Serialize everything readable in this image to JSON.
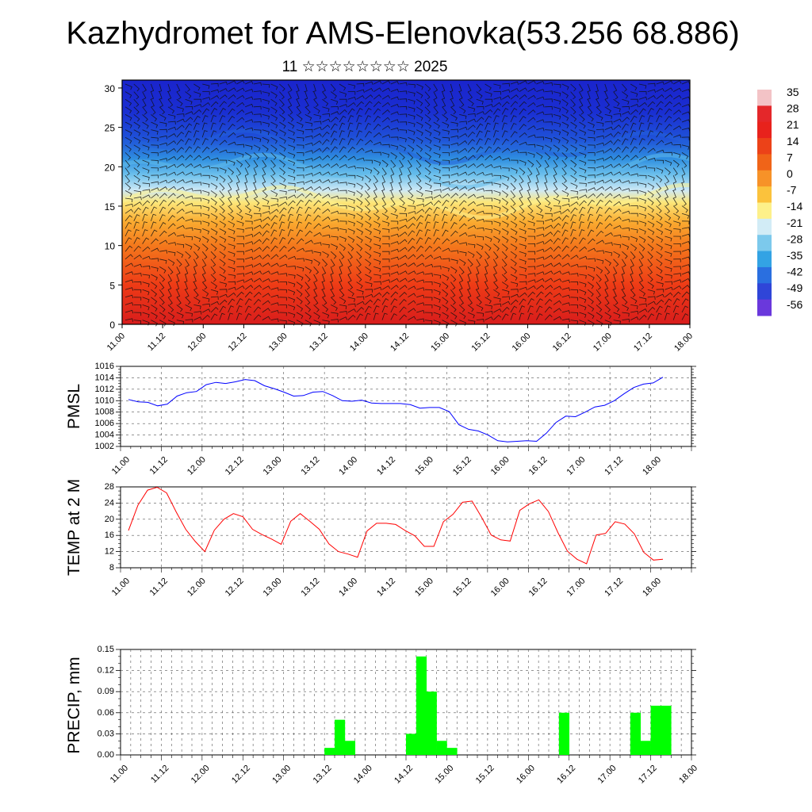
{
  "header": {
    "title": "Kazhydromet for AMS-Elenovka(53.256 68.886)",
    "subtitle": "11 ☆☆☆☆☆☆☆☆ 2025"
  },
  "time_labels": [
    "11.00",
    "11.12",
    "12.00",
    "12.12",
    "13.00",
    "13.12",
    "14.00",
    "14.12",
    "15.00",
    "15.12",
    "16.00",
    "16.12",
    "17.00",
    "17.12",
    "18.00"
  ],
  "chart_data": [
    {
      "type": "heatmap",
      "description_kind": "temperature cross-section with wind barbs",
      "y_ticks": [
        0,
        5,
        10,
        15,
        20,
        25,
        30
      ],
      "ylim": [
        0,
        31
      ],
      "colorbar": {
        "labels": [
          "35",
          "28",
          "21",
          "14",
          "7",
          "0",
          "-7",
          "-14",
          "-21",
          "-28",
          "-35",
          "-42",
          "-49",
          "-56"
        ],
        "colors": [
          "#f3c3c6",
          "#e4272a",
          "#e8221c",
          "#ec4218",
          "#f06418",
          "#f79228",
          "#fbc23c",
          "#fdf08a",
          "#d2ecf6",
          "#7cc9ec",
          "#33a3e4",
          "#2a6fe0",
          "#2f45d8",
          "#6a38dc"
        ]
      },
      "layers": [
        {
          "level": 0,
          "color": "#d81c1c"
        },
        {
          "level": 5,
          "color": "#ee3b16"
        },
        {
          "level": 10,
          "color": "#f4781c"
        },
        {
          "level": 13,
          "color": "#faab30"
        },
        {
          "level": 15.5,
          "color": "#fce77a"
        },
        {
          "level": 17,
          "color": "#cfe9f5"
        },
        {
          "level": 19,
          "color": "#6cc0ec"
        },
        {
          "level": 21,
          "color": "#2f8fe0"
        },
        {
          "level": 23.5,
          "color": "#1f52d8"
        },
        {
          "level": 27,
          "color": "#1a2ed2"
        },
        {
          "level": 31,
          "color": "#1a24cc"
        }
      ]
    },
    {
      "type": "line",
      "ylabel": "PMSL",
      "ylim": [
        1002,
        1016
      ],
      "y_ticks": [
        1002,
        1004,
        1006,
        1008,
        1010,
        1012,
        1014,
        1016
      ],
      "color": "#0000ff",
      "values": [
        1010.2,
        1009.8,
        1009.7,
        1009.1,
        1009.4,
        1010.8,
        1011.4,
        1011.6,
        1012.8,
        1013.2,
        1013.0,
        1013.3,
        1013.7,
        1013.5,
        1012.6,
        1012.1,
        1011.5,
        1010.8,
        1010.9,
        1011.5,
        1011.6,
        1010.9,
        1010.0,
        1009.9,
        1010.1,
        1009.6,
        1009.5,
        1009.5,
        1009.5,
        1009.3,
        1008.7,
        1008.8,
        1008.8,
        1008.1,
        1005.8,
        1005.0,
        1004.7,
        1004.0,
        1003.0,
        1002.8,
        1002.9,
        1003.0,
        1002.9,
        1004.3,
        1006.2,
        1007.3,
        1007.2,
        1008.0,
        1008.9,
        1009.2,
        1010.0,
        1011.2,
        1012.3,
        1012.9,
        1013.1,
        1014.1
      ]
    },
    {
      "type": "line",
      "ylabel": "TEMP at 2 M",
      "ylim": [
        8,
        28
      ],
      "y_ticks": [
        8,
        12,
        16,
        20,
        24,
        28
      ],
      "color": "#ff0000",
      "values": [
        17.2,
        23.5,
        27.2,
        27.9,
        26.5,
        21.8,
        17.5,
        14.5,
        12.0,
        17.3,
        20.0,
        21.4,
        20.6,
        17.5,
        16.2,
        15.1,
        13.8,
        19.5,
        21.4,
        19.5,
        17.5,
        13.9,
        12.0,
        11.4,
        10.6,
        17.1,
        19.0,
        19.0,
        18.7,
        17.2,
        15.9,
        13.3,
        13.3,
        19.4,
        21.2,
        24.2,
        24.5,
        20.5,
        16.1,
        14.9,
        14.6,
        22.2,
        23.8,
        24.8,
        21.9,
        16.7,
        12.1,
        10.1,
        9.0,
        16.1,
        16.5,
        19.4,
        18.8,
        16.4,
        11.8,
        9.9,
        10.1
      ]
    },
    {
      "type": "bar",
      "ylabel": "PRECIP, mm",
      "ylim": [
        0,
        0.15
      ],
      "y_ticks": [
        "0.00",
        "0.03",
        "0.06",
        "0.09",
        "0.12",
        "0.15"
      ],
      "color": "#00ff00",
      "values": [
        0,
        0,
        0,
        0,
        0,
        0,
        0,
        0,
        0,
        0,
        0,
        0,
        0,
        0,
        0,
        0,
        0,
        0,
        0,
        0,
        0.01,
        0.05,
        0.02,
        0,
        0,
        0,
        0,
        0,
        0.03,
        0.14,
        0.09,
        0.02,
        0.01,
        0,
        0,
        0,
        0,
        0,
        0,
        0,
        0,
        0,
        0,
        0.06,
        0,
        0,
        0,
        0,
        0,
        0,
        0.06,
        0.02,
        0.07,
        0.07,
        0,
        0
      ]
    }
  ]
}
